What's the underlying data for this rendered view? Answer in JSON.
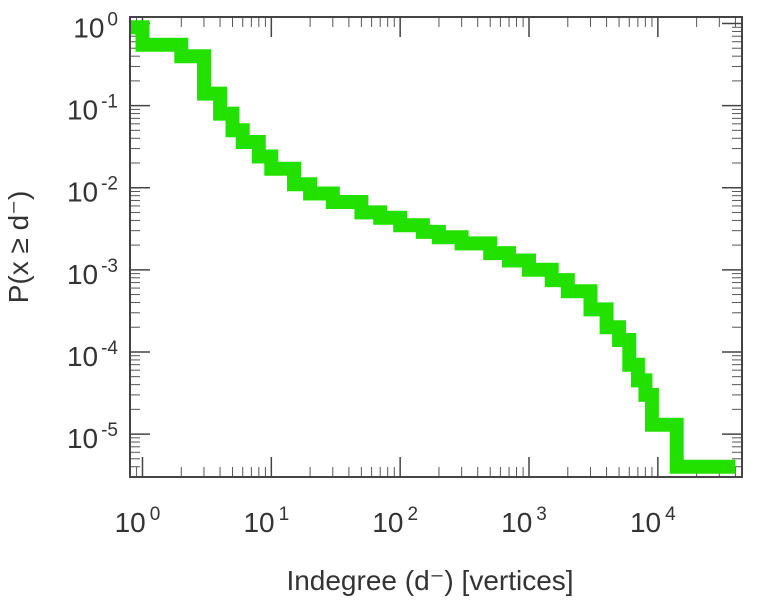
{
  "chart_data": {
    "type": "line",
    "title": "",
    "xlabel": "Indegree (d⁻) [vertices]",
    "ylabel": "P(x ≥ d⁻)",
    "xscale": "log",
    "yscale": "log",
    "xlim": [
      0.8,
      45000
    ],
    "ylim": [
      3e-06,
      1.2
    ],
    "grid": false,
    "legend": "none",
    "x_ticks": [
      {
        "base": "10",
        "exp": "0",
        "value": 1
      },
      {
        "base": "10",
        "exp": "1",
        "value": 10
      },
      {
        "base": "10",
        "exp": "2",
        "value": 100
      },
      {
        "base": "10",
        "exp": "3",
        "value": 1000
      },
      {
        "base": "10",
        "exp": "4",
        "value": 10000
      }
    ],
    "y_ticks": [
      {
        "base": "10",
        "exp": "0",
        "value": 1
      },
      {
        "base": "10",
        "exp": "-1",
        "value": 0.1
      },
      {
        "base": "10",
        "exp": "-2",
        "value": 0.01
      },
      {
        "base": "10",
        "exp": "-3",
        "value": 0.001
      },
      {
        "base": "10",
        "exp": "-4",
        "value": 0.0001
      },
      {
        "base": "10",
        "exp": "-5",
        "value": 1e-05
      }
    ],
    "series": [
      {
        "color": "#22e000",
        "x": [
          0.8,
          1,
          2,
          3,
          4,
          5,
          6,
          8,
          10,
          15,
          20,
          30,
          50,
          70,
          100,
          150,
          200,
          300,
          500,
          700,
          1000,
          1500,
          2000,
          3000,
          4000,
          5000,
          6000,
          7000,
          8000,
          9000,
          14000,
          40000
        ],
        "y": [
          0.9,
          0.55,
          0.4,
          0.14,
          0.08,
          0.05,
          0.036,
          0.024,
          0.017,
          0.011,
          0.0085,
          0.0067,
          0.005,
          0.0043,
          0.0035,
          0.0029,
          0.0025,
          0.0021,
          0.0016,
          0.0013,
          0.001,
          0.00075,
          0.00055,
          0.00033,
          0.0002,
          0.00014,
          7e-05,
          4.5e-05,
          3e-05,
          1.3e-05,
          4e-06,
          4e-06
        ]
      }
    ]
  }
}
